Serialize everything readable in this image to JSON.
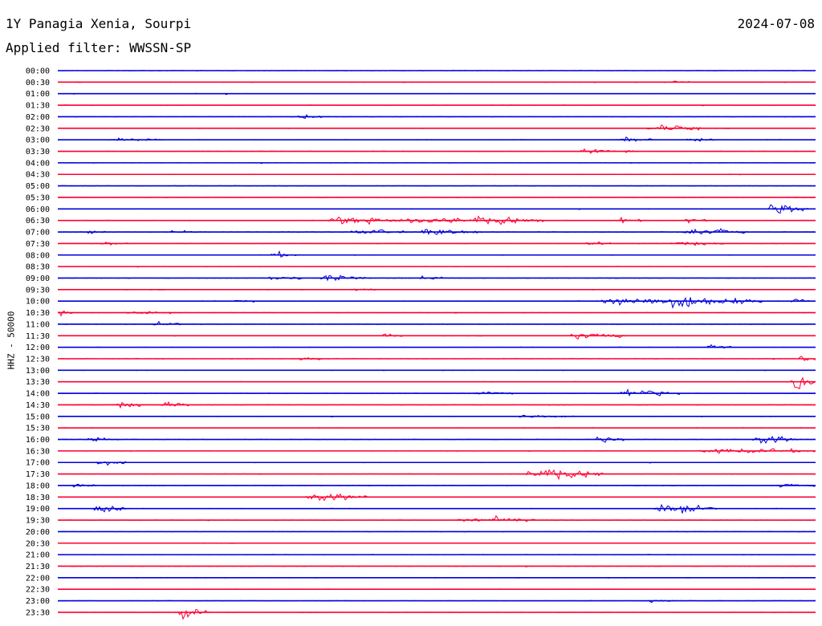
{
  "header": {
    "title": "1Y Panagia Xenia, Sourpi",
    "date": "2024-07-08",
    "filter": "Applied filter: WWSSN-SP"
  },
  "channel_label": "HHZ - 50000",
  "colors": {
    "odd": "#0000dd",
    "even": "#ff0033",
    "text": "#000000"
  },
  "chart_data": {
    "type": "line",
    "title": "1Y Panagia Xenia, Sourpi",
    "subtitle": "Applied filter: WWSSN-SP",
    "ylabel": "HHZ - 50000",
    "grid": false,
    "series_colors": [
      "#0000dd",
      "#ff0033"
    ],
    "y_tick_labels": [
      "00:00",
      "00:30",
      "01:00",
      "01:30",
      "02:00",
      "02:30",
      "03:00",
      "03:30",
      "04:00",
      "04:30",
      "05:00",
      "05:30",
      "06:00",
      "06:30",
      "07:00",
      "07:30",
      "08:00",
      "08:30",
      "09:00",
      "09:30",
      "10:00",
      "10:30",
      "11:00",
      "11:30",
      "12:00",
      "12:30",
      "13:00",
      "13:30",
      "14:00",
      "14:30",
      "15:00",
      "15:30",
      "16:00",
      "16:30",
      "17:00",
      "17:30",
      "18:00",
      "18:30",
      "19:00",
      "19:30",
      "20:00",
      "20:30",
      "21:00",
      "21:30",
      "22:00",
      "22:30",
      "23:00",
      "23:30"
    ],
    "events": [
      {
        "row": "00:30",
        "t": 0.81,
        "amp": 0.5,
        "len": 0.006
      },
      {
        "row": "02:00",
        "t": 0.32,
        "amp": 0.6,
        "len": 0.012
      },
      {
        "row": "02:30",
        "t": 0.78,
        "amp": 0.9,
        "len": 0.05
      },
      {
        "row": "03:00",
        "t": 0.07,
        "amp": 0.5,
        "len": 0.05
      },
      {
        "row": "03:00",
        "t": 0.74,
        "amp": 0.9,
        "len": 0.025
      },
      {
        "row": "03:00",
        "t": 0.83,
        "amp": 0.8,
        "len": 0.02
      },
      {
        "row": "03:30",
        "t": 0.69,
        "amp": 0.5,
        "len": 0.05
      },
      {
        "row": "06:00",
        "t": 0.94,
        "amp": 2.2,
        "len": 0.03
      },
      {
        "row": "06:30",
        "t": 0.36,
        "amp": 1.0,
        "len": 0.08
      },
      {
        "row": "06:30",
        "t": 0.46,
        "amp": 1.1,
        "len": 0.08
      },
      {
        "row": "06:30",
        "t": 0.55,
        "amp": 1.0,
        "len": 0.03
      },
      {
        "row": "06:30",
        "t": 0.58,
        "amp": 0.9,
        "len": 0.04
      },
      {
        "row": "06:30",
        "t": 0.74,
        "amp": 1.0,
        "len": 0.012
      },
      {
        "row": "06:30",
        "t": 0.83,
        "amp": 0.8,
        "len": 0.01
      },
      {
        "row": "07:00",
        "t": 0.04,
        "amp": 0.5,
        "len": 0.012
      },
      {
        "row": "07:00",
        "t": 0.15,
        "amp": 0.5,
        "len": 0.02
      },
      {
        "row": "07:00",
        "t": 0.39,
        "amp": 0.7,
        "len": 0.05
      },
      {
        "row": "07:00",
        "t": 0.48,
        "amp": 0.9,
        "len": 0.06
      },
      {
        "row": "07:00",
        "t": 0.82,
        "amp": 0.9,
        "len": 0.04
      },
      {
        "row": "07:00",
        "t": 0.87,
        "amp": 0.7,
        "len": 0.02
      },
      {
        "row": "07:30",
        "t": 0.06,
        "amp": 0.6,
        "len": 0.012
      },
      {
        "row": "07:30",
        "t": 0.7,
        "amp": 0.8,
        "len": 0.015
      },
      {
        "row": "07:30",
        "t": 0.81,
        "amp": 0.5,
        "len": 0.05
      },
      {
        "row": "08:00",
        "t": 0.28,
        "amp": 0.8,
        "len": 0.02
      },
      {
        "row": "09:00",
        "t": 0.28,
        "amp": 0.9,
        "len": 0.02
      },
      {
        "row": "09:00",
        "t": 0.35,
        "amp": 0.8,
        "len": 0.04
      },
      {
        "row": "09:00",
        "t": 0.48,
        "amp": 0.8,
        "len": 0.008
      },
      {
        "row": "09:30",
        "t": 0.39,
        "amp": 0.5,
        "len": 0.01
      },
      {
        "row": "10:00",
        "t": 0.23,
        "amp": 0.5,
        "len": 0.01
      },
      {
        "row": "10:00",
        "t": 0.72,
        "amp": 1.3,
        "len": 0.09
      },
      {
        "row": "10:00",
        "t": 0.81,
        "amp": 1.2,
        "len": 0.1
      },
      {
        "row": "10:00",
        "t": 0.97,
        "amp": 0.9,
        "len": 0.02
      },
      {
        "row": "10:30",
        "t": 0.0,
        "amp": 0.6,
        "len": 0.012
      },
      {
        "row": "10:30",
        "t": 0.09,
        "amp": 0.4,
        "len": 0.04
      },
      {
        "row": "11:00",
        "t": 0.13,
        "amp": 0.7,
        "len": 0.012
      },
      {
        "row": "11:30",
        "t": 0.43,
        "amp": 0.6,
        "len": 0.012
      },
      {
        "row": "11:30",
        "t": 0.68,
        "amp": 1.4,
        "len": 0.012
      },
      {
        "row": "11:30",
        "t": 0.72,
        "amp": 1.0,
        "len": 0.012
      },
      {
        "row": "12:00",
        "t": 0.86,
        "amp": 0.6,
        "len": 0.01
      },
      {
        "row": "12:30",
        "t": 0.32,
        "amp": 0.8,
        "len": 0.006
      },
      {
        "row": "12:30",
        "t": 0.98,
        "amp": 1.4,
        "len": 0.01
      },
      {
        "row": "13:30",
        "t": 0.97,
        "amp": 1.6,
        "len": 0.025
      },
      {
        "row": "14:00",
        "t": 0.55,
        "amp": 0.5,
        "len": 0.03
      },
      {
        "row": "14:00",
        "t": 0.74,
        "amp": 1.2,
        "len": 0.02
      },
      {
        "row": "14:00",
        "t": 0.77,
        "amp": 1.1,
        "len": 0.03
      },
      {
        "row": "14:30",
        "t": 0.08,
        "amp": 1.1,
        "len": 0.012
      },
      {
        "row": "14:30",
        "t": 0.14,
        "amp": 1.0,
        "len": 0.012
      },
      {
        "row": "15:00",
        "t": 0.61,
        "amp": 0.4,
        "len": 0.06
      },
      {
        "row": "16:00",
        "t": 0.04,
        "amp": 0.6,
        "len": 0.025
      },
      {
        "row": "16:00",
        "t": 0.71,
        "amp": 1.0,
        "len": 0.02
      },
      {
        "row": "16:00",
        "t": 0.92,
        "amp": 1.1,
        "len": 0.04
      },
      {
        "row": "16:30",
        "t": 0.85,
        "amp": 0.6,
        "len": 0.13
      },
      {
        "row": "17:00",
        "t": 0.05,
        "amp": 0.6,
        "len": 0.02
      },
      {
        "row": "17:30",
        "t": 0.62,
        "amp": 1.5,
        "len": 0.08
      },
      {
        "row": "18:00",
        "t": 0.02,
        "amp": 0.5,
        "len": 0.01
      },
      {
        "row": "18:00",
        "t": 0.95,
        "amp": 0.4,
        "len": 0.03
      },
      {
        "row": "18:30",
        "t": 0.33,
        "amp": 1.0,
        "len": 0.06
      },
      {
        "row": "19:00",
        "t": 0.05,
        "amp": 1.5,
        "len": 0.02
      },
      {
        "row": "19:00",
        "t": 0.79,
        "amp": 1.1,
        "len": 0.06
      },
      {
        "row": "19:30",
        "t": 0.53,
        "amp": 0.9,
        "len": 0.015
      },
      {
        "row": "19:30",
        "t": 0.57,
        "amp": 1.0,
        "len": 0.04
      },
      {
        "row": "23:00",
        "t": 0.78,
        "amp": 0.4,
        "len": 0.015
      },
      {
        "row": "23:30",
        "t": 0.16,
        "amp": 2.3,
        "len": 0.015
      }
    ]
  }
}
